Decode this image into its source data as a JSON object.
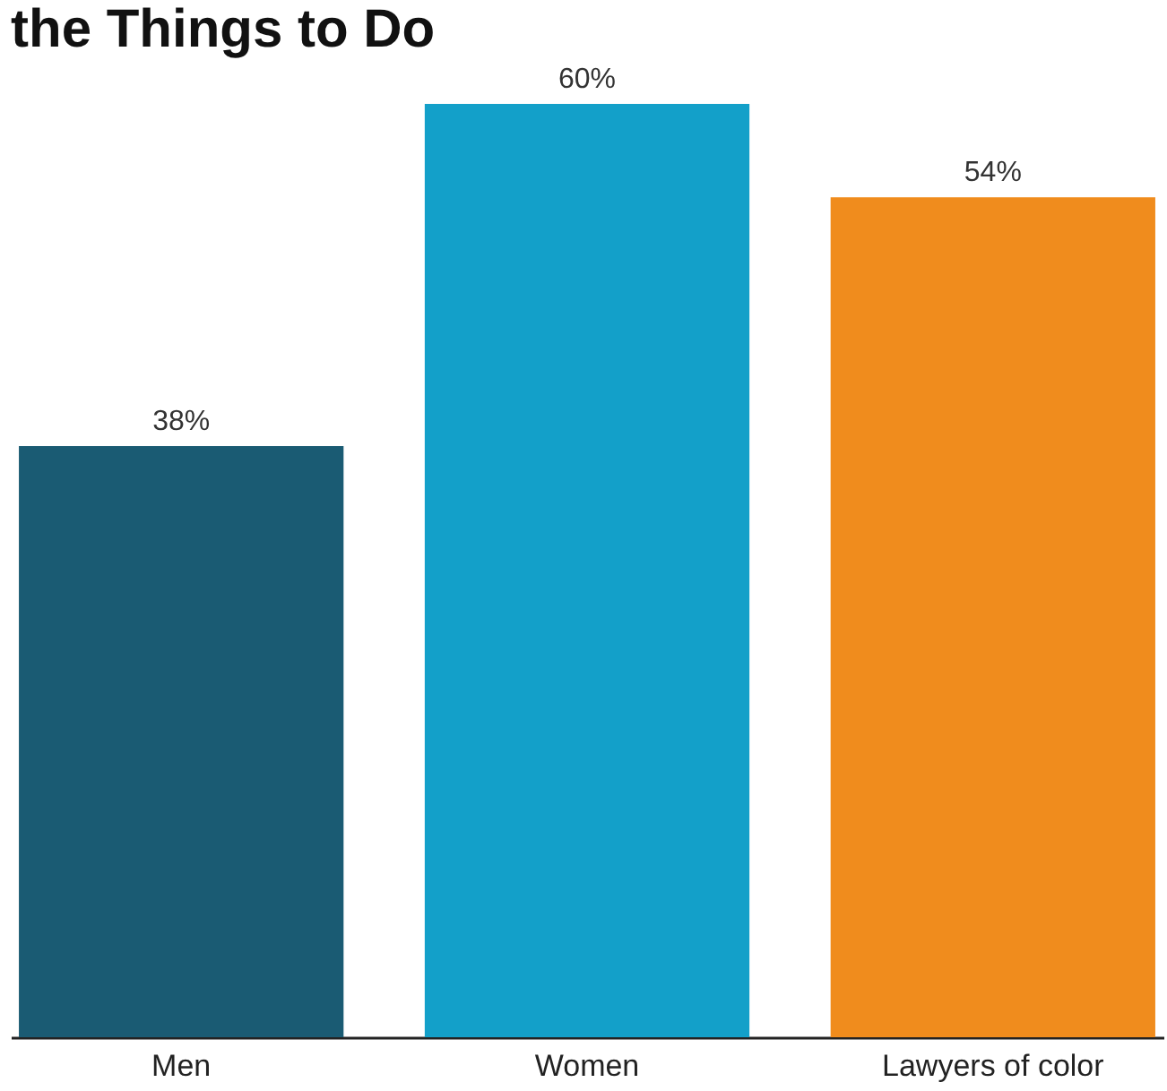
{
  "chart_data": {
    "type": "bar",
    "title": "the Things to Do",
    "categories": [
      "Men",
      "Women",
      "Lawyers of color"
    ],
    "values": [
      38,
      60,
      54
    ],
    "value_labels": [
      "38%",
      "60%",
      "54%"
    ],
    "colors": [
      "#1a5b73",
      "#13a0c9",
      "#f08c1d"
    ],
    "tick_labels": "x"
  }
}
